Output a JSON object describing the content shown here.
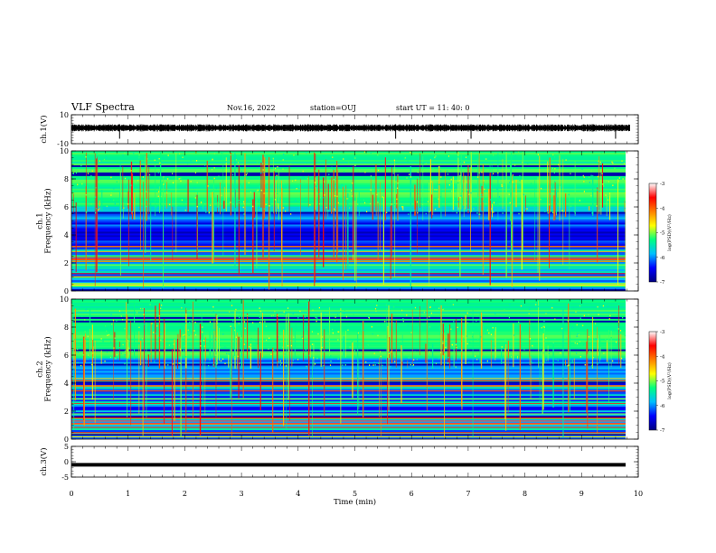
{
  "header": {
    "title": "VLF Spectra",
    "date": "Nov.16, 2022",
    "station": "station=OUJ",
    "start_ut": "start  UT  =   11: 40: 0"
  },
  "chart_data": [
    {
      "type": "line",
      "id": "ch1-waveform",
      "ylabel": "ch.1(V)",
      "ylim": [
        -10,
        10
      ],
      "yticks": [
        "10",
        "-10"
      ],
      "xlim": [
        0,
        10
      ],
      "note_values": "noisy waveform centered near 0 V, amplitude ~ +/-1 V, spikes near 5.7, 9.6 min",
      "spikes_min": [
        0.85,
        5.72,
        7.05,
        9.6
      ]
    },
    {
      "type": "heatmap",
      "id": "ch1-spectrogram",
      "ylabel": "ch.1\nFrequency  (kHz)",
      "ylim": [
        0,
        10
      ],
      "yticks": [
        "0",
        "2",
        "4",
        "6",
        "8",
        "10"
      ],
      "xlim": [
        0,
        9.8
      ],
      "colorbar": {
        "label": "log(PSD)(V²/Hz)",
        "range": [
          -7,
          -3
        ],
        "ticks": [
          "-3",
          "-4",
          "-5",
          "-6",
          "-7"
        ]
      }
    },
    {
      "type": "heatmap",
      "id": "ch2-spectrogram",
      "ylabel": "ch.2\nFrequency  (kHz)",
      "ylim": [
        0,
        10
      ],
      "yticks": [
        "0",
        "2",
        "4",
        "6",
        "8",
        "10"
      ],
      "xlim": [
        0,
        9.8
      ],
      "colorbar": {
        "label": "log(PSD)(V²/Hz)",
        "range": [
          -7,
          -3
        ],
        "ticks": [
          "-3",
          "-4",
          "-5",
          "-6",
          "-7"
        ]
      }
    },
    {
      "type": "line",
      "id": "ch3-waveform",
      "ylabel": "ch.3(V)",
      "ylim": [
        -5,
        5
      ],
      "yticks": [
        "5",
        "0",
        "-5"
      ],
      "xlim": [
        0,
        10
      ],
      "value_V": -1.0
    }
  ],
  "x_axis": {
    "label": "Time  (min)",
    "ticks": [
      "0",
      "1",
      "2",
      "3",
      "4",
      "5",
      "6",
      "7",
      "8",
      "9",
      "10"
    ]
  },
  "colors": {
    "colormap": [
      "#000080",
      "#0000ff",
      "#00bfff",
      "#00ff80",
      "#ffff00",
      "#ff8000",
      "#ff0000",
      "#ffffff"
    ]
  }
}
